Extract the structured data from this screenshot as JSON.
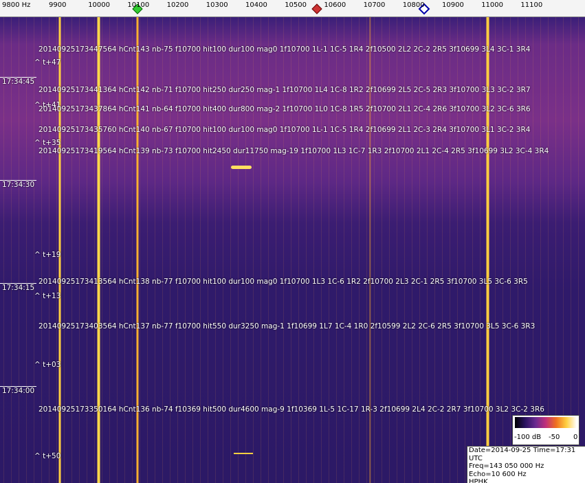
{
  "header": {
    "freq_ticks": [
      "9800 Hz",
      "9900",
      "10000",
      "10100",
      "10200",
      "10300",
      "10400",
      "10500",
      "10600",
      "10700",
      "10800",
      "10900",
      "11000",
      "11100"
    ]
  },
  "time_labels": [
    "17:34:45",
    "17:34:30",
    "17:34:15",
    "17:34:00"
  ],
  "events": [
    "20140925173447564 hCnt143 nb-75 f10700 hit100 dur100 mag0 1f10700 1L-1 1C-5 1R4 2f10500 2L2 2C-2 2R5 3f10699 3L4 3C-1 3R4",
    "20140925173441364 hCnt142 nb-71 f10700 hit250 dur250 mag-1 1f10700 1L4 1C-8 1R2 2f10699 2L5 2C-5 2R3 3f10700 3L3 3C-2 3R7",
    "20140925173437864 hCnt141 nb-64 f10700 hit400 dur800 mag-2 1f10700 1L0 1C-8 1R5 2f10700 2L1 2C-4 2R6 3f10700 3L2 3C-6 3R6",
    "20140925173435760 hCnt140 nb-67 f10700 hit100 dur100 mag0 1f10700 1L-1 1C-5 1R4 2f10699 2L1 2C-3 2R4 3f10700 3L1 3C-2 3R4",
    "20140925173419564 hCnt139 nb-73 f10700 hit2450 dur11750 mag-19 1f10700 1L3 1C-7 1R3 2f10700 2L1 2C-4 2R5 3f10699 3L2 3C-4 3R4",
    "20140925173413564 hCnt138 nb-77 f10700 hit100 dur100 mag0 1f10700 1L3 1C-6 1R2 2f10700 2L3 2C-1 2R5 3f10700 3L5 3C-6 3R5",
    "20140925173403564 hCnt137 nb-77 f10700 hit550 dur3250 mag-1 1f10699 1L7 1C-4 1R0 2f10599 2L2 2C-6 2R5 3f10700 3L5 3C-6 3R3",
    "20140925173350164 hCnt136 nb-74 f10369 hit500 dur4600 mag-9 1f10369 1L-5 1C-17 1R-3 2f10699 2L4 2C-2 2R7 3f10700 3L2 3C-2 3R6"
  ],
  "t_labels": [
    "^ t+47",
    "^ t+41",
    "^ t+35",
    "^ t+19",
    "^ t+13",
    "^ t+03",
    "^ t+50"
  ],
  "legend": [
    "-100 dB",
    "-50",
    "0"
  ],
  "info": [
    "Date=2014-09-25 Time=17:31 UTC",
    "Freq=143 050 000 Hz",
    "Echo=10 600 Hz",
    "HPHK"
  ]
}
